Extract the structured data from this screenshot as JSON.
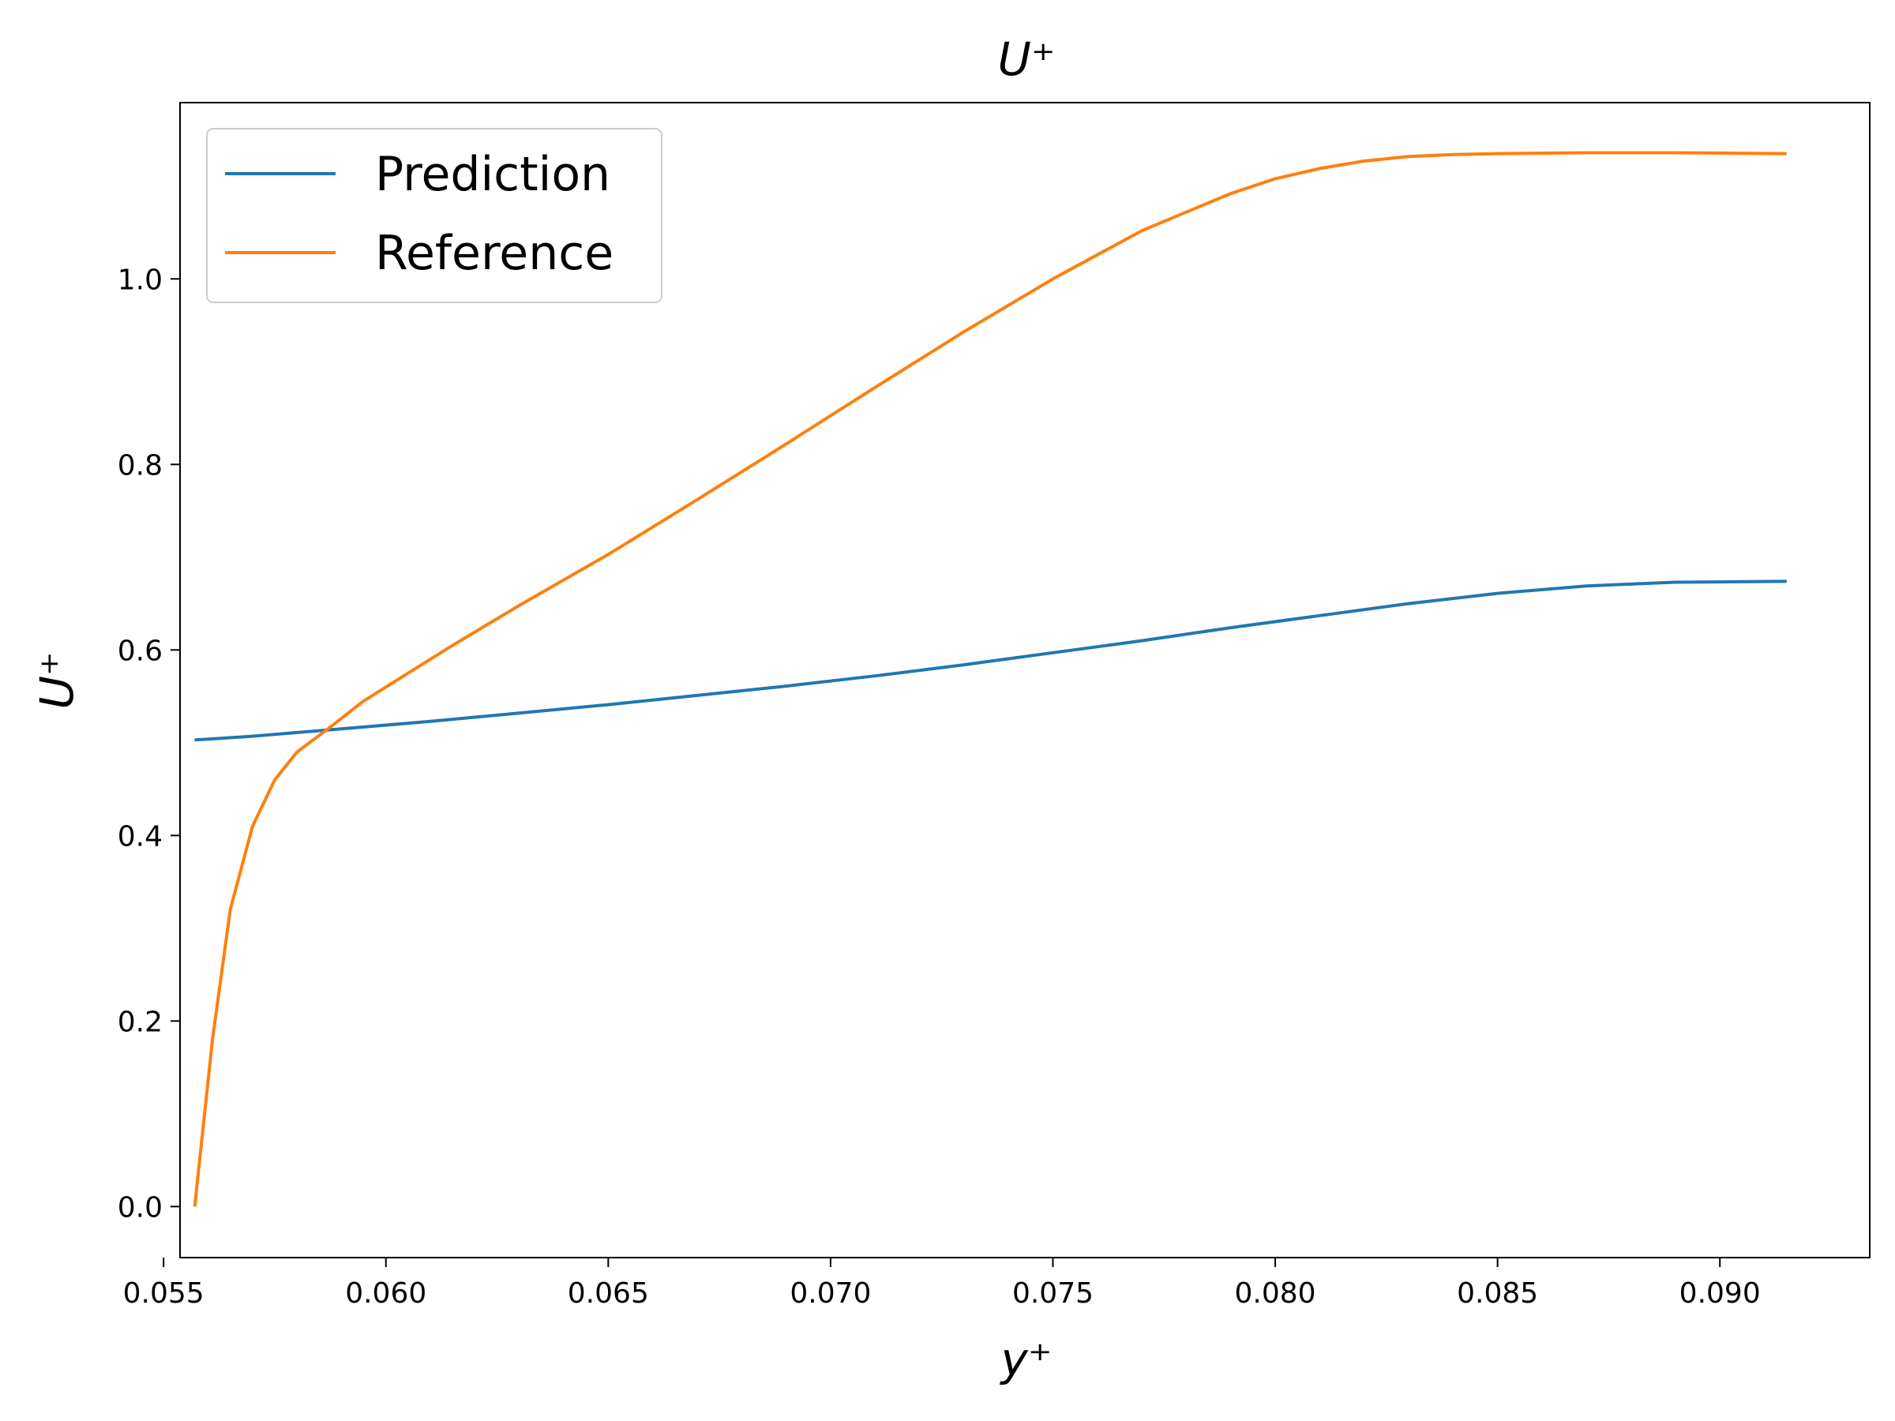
{
  "chart_data": {
    "type": "line",
    "title": "U⁺",
    "xlabel": "y⁺",
    "ylabel": "U⁺",
    "xlim": [
      0.05537,
      0.09337
    ],
    "ylim": [
      -0.055,
      1.19
    ],
    "xticks": [
      0.055,
      0.06,
      0.065,
      0.07,
      0.075,
      0.08,
      0.085,
      0.09
    ],
    "xtick_labels": [
      "0.055",
      "0.060",
      "0.065",
      "0.070",
      "0.075",
      "0.080",
      "0.085",
      "0.090"
    ],
    "yticks": [
      0.0,
      0.2,
      0.4,
      0.6,
      0.8,
      1.0
    ],
    "ytick_labels": [
      "0.0",
      "0.2",
      "0.4",
      "0.6",
      "0.8",
      "1.0"
    ],
    "grid": false,
    "legend_position": "top-left",
    "series": [
      {
        "name": "Prediction",
        "color": "#1f77b4",
        "x": [
          0.0557,
          0.057,
          0.059,
          0.061,
          0.063,
          0.065,
          0.067,
          0.069,
          0.071,
          0.073,
          0.075,
          0.077,
          0.079,
          0.081,
          0.083,
          0.085,
          0.087,
          0.089,
          0.0915
        ],
        "y": [
          0.503,
          0.507,
          0.515,
          0.523,
          0.532,
          0.541,
          0.551,
          0.561,
          0.572,
          0.584,
          0.597,
          0.61,
          0.624,
          0.637,
          0.65,
          0.661,
          0.669,
          0.673,
          0.674
        ]
      },
      {
        "name": "Reference",
        "color": "#ff7f0e",
        "x": [
          0.0557,
          0.0561,
          0.0565,
          0.057,
          0.0575,
          0.058,
          0.0587,
          0.0595,
          0.0605,
          0.0615,
          0.063,
          0.065,
          0.067,
          0.069,
          0.071,
          0.073,
          0.075,
          0.077,
          0.079,
          0.08,
          0.081,
          0.082,
          0.083,
          0.084,
          0.085,
          0.087,
          0.089,
          0.0915
        ],
        "y": [
          0.0,
          0.18,
          0.32,
          0.41,
          0.46,
          0.49,
          0.515,
          0.545,
          0.575,
          0.605,
          0.648,
          0.703,
          0.762,
          0.822,
          0.883,
          0.943,
          1.0,
          1.052,
          1.092,
          1.108,
          1.119,
          1.127,
          1.132,
          1.134,
          1.135,
          1.136,
          1.136,
          1.135
        ]
      }
    ]
  }
}
